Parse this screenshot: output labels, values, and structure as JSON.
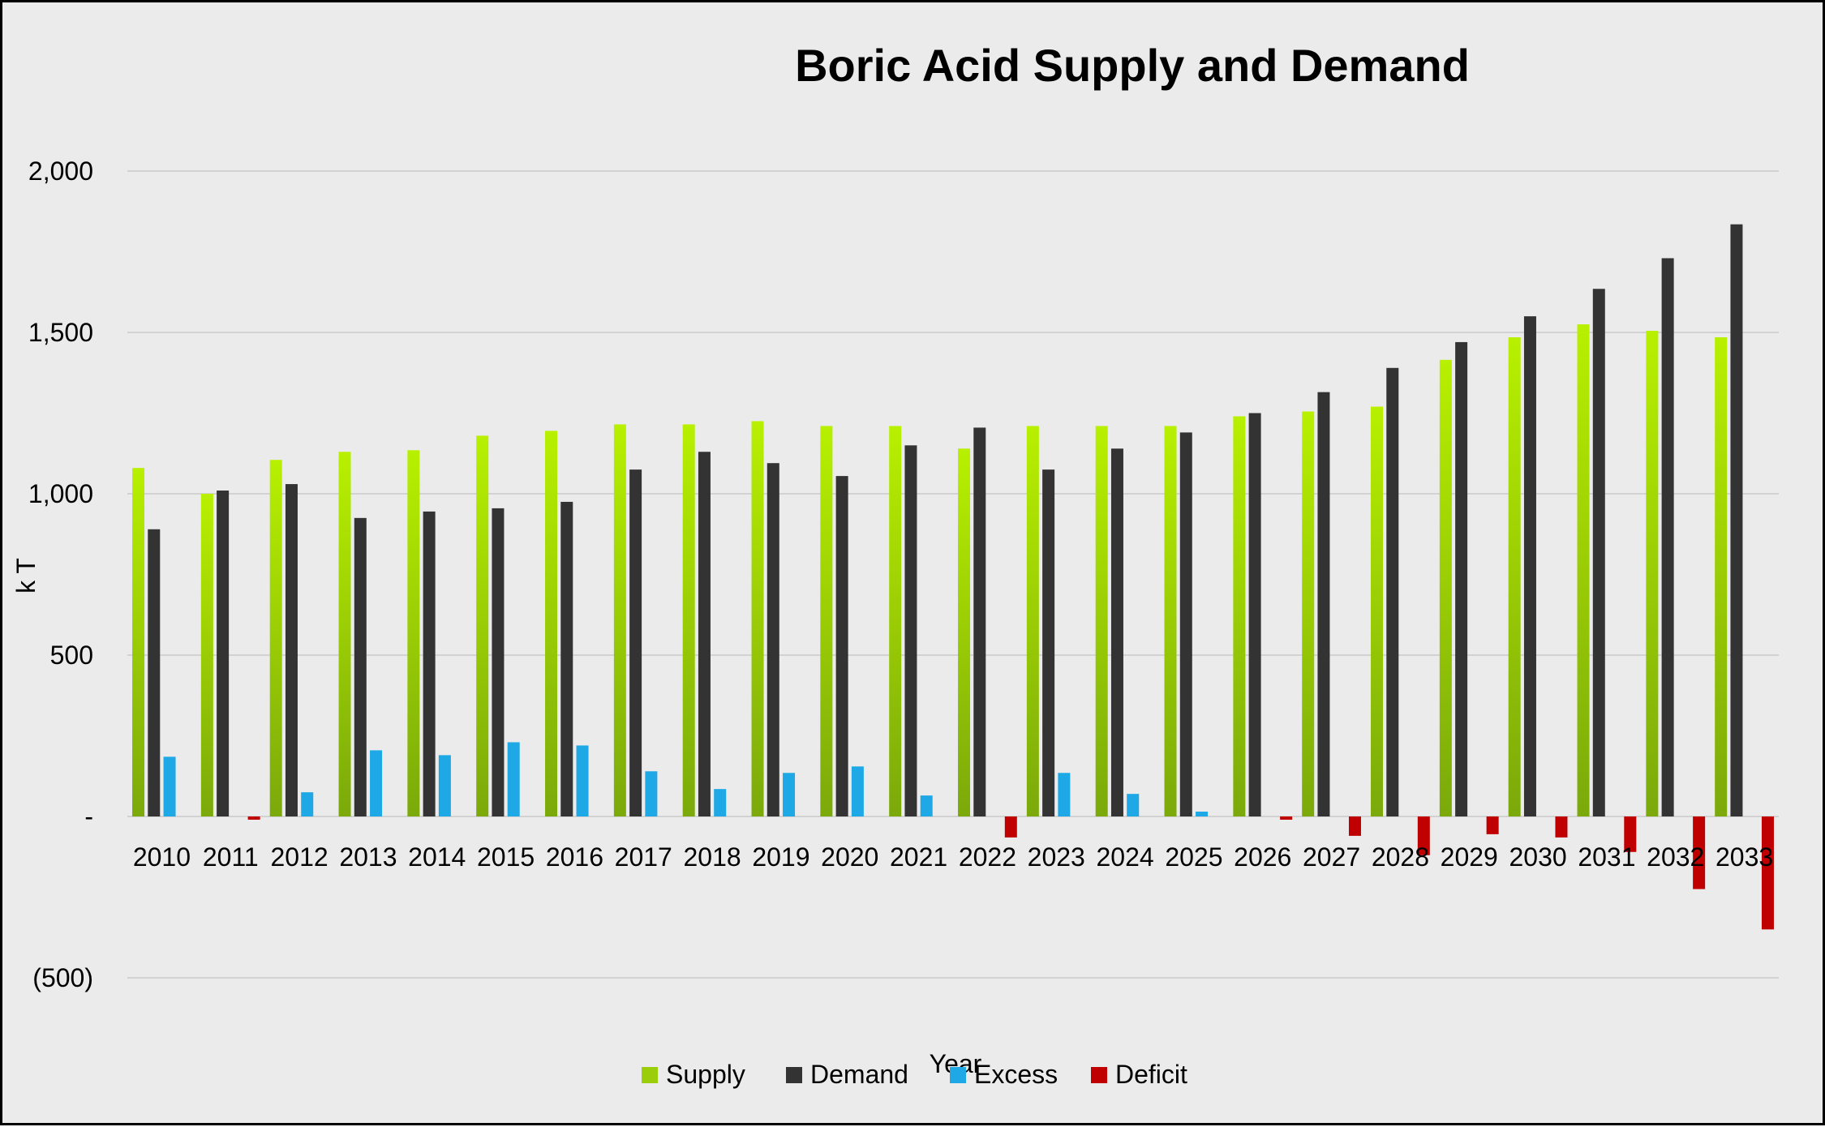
{
  "chart_data": {
    "type": "bar",
    "title": "Boric Acid Supply and Demand",
    "xlabel": "Year",
    "ylabel": "k T",
    "ylim": [
      -500,
      2000
    ],
    "yticks": [
      {
        "value": 2000,
        "label": "2,000"
      },
      {
        "value": 1500,
        "label": "1,500"
      },
      {
        "value": 1000,
        "label": "1,000"
      },
      {
        "value": 500,
        "label": "500"
      },
      {
        "value": 0,
        "label": "-"
      },
      {
        "value": -500,
        "label": "(500)"
      }
    ],
    "grid": true,
    "legend_position": "bottom",
    "categories": [
      "2010",
      "2011",
      "2012",
      "2013",
      "2014",
      "2015",
      "2016",
      "2017",
      "2018",
      "2019",
      "2020",
      "2021",
      "2022",
      "2023",
      "2024",
      "2025",
      "2026",
      "2027",
      "2028",
      "2029",
      "2030",
      "2031",
      "2032",
      "2033"
    ],
    "series": [
      {
        "name": "Supply",
        "color": "#9acd0a",
        "values": [
          1080,
          1000,
          1105,
          1130,
          1135,
          1180,
          1195,
          1215,
          1215,
          1225,
          1210,
          1210,
          1140,
          1210,
          1210,
          1210,
          1240,
          1255,
          1270,
          1415,
          1485,
          1525,
          1505,
          1485
        ]
      },
      {
        "name": "Demand",
        "color": "#333333",
        "values": [
          890,
          1010,
          1030,
          925,
          945,
          955,
          975,
          1075,
          1130,
          1095,
          1055,
          1150,
          1205,
          1075,
          1140,
          1190,
          1250,
          1315,
          1390,
          1470,
          1550,
          1635,
          1730,
          1835
        ]
      },
      {
        "name": "Excess",
        "color": "#1fa8e6",
        "values": [
          185,
          0,
          75,
          205,
          190,
          230,
          220,
          140,
          85,
          135,
          155,
          65,
          0,
          135,
          70,
          15,
          0,
          0,
          0,
          0,
          0,
          0,
          0,
          0
        ]
      },
      {
        "name": "Deficit",
        "color": "#c00000",
        "values": [
          0,
          -10,
          0,
          0,
          0,
          0,
          0,
          0,
          0,
          0,
          0,
          0,
          -65,
          0,
          0,
          0,
          -10,
          -60,
          -120,
          -55,
          -65,
          -110,
          -225,
          -350
        ]
      }
    ]
  }
}
